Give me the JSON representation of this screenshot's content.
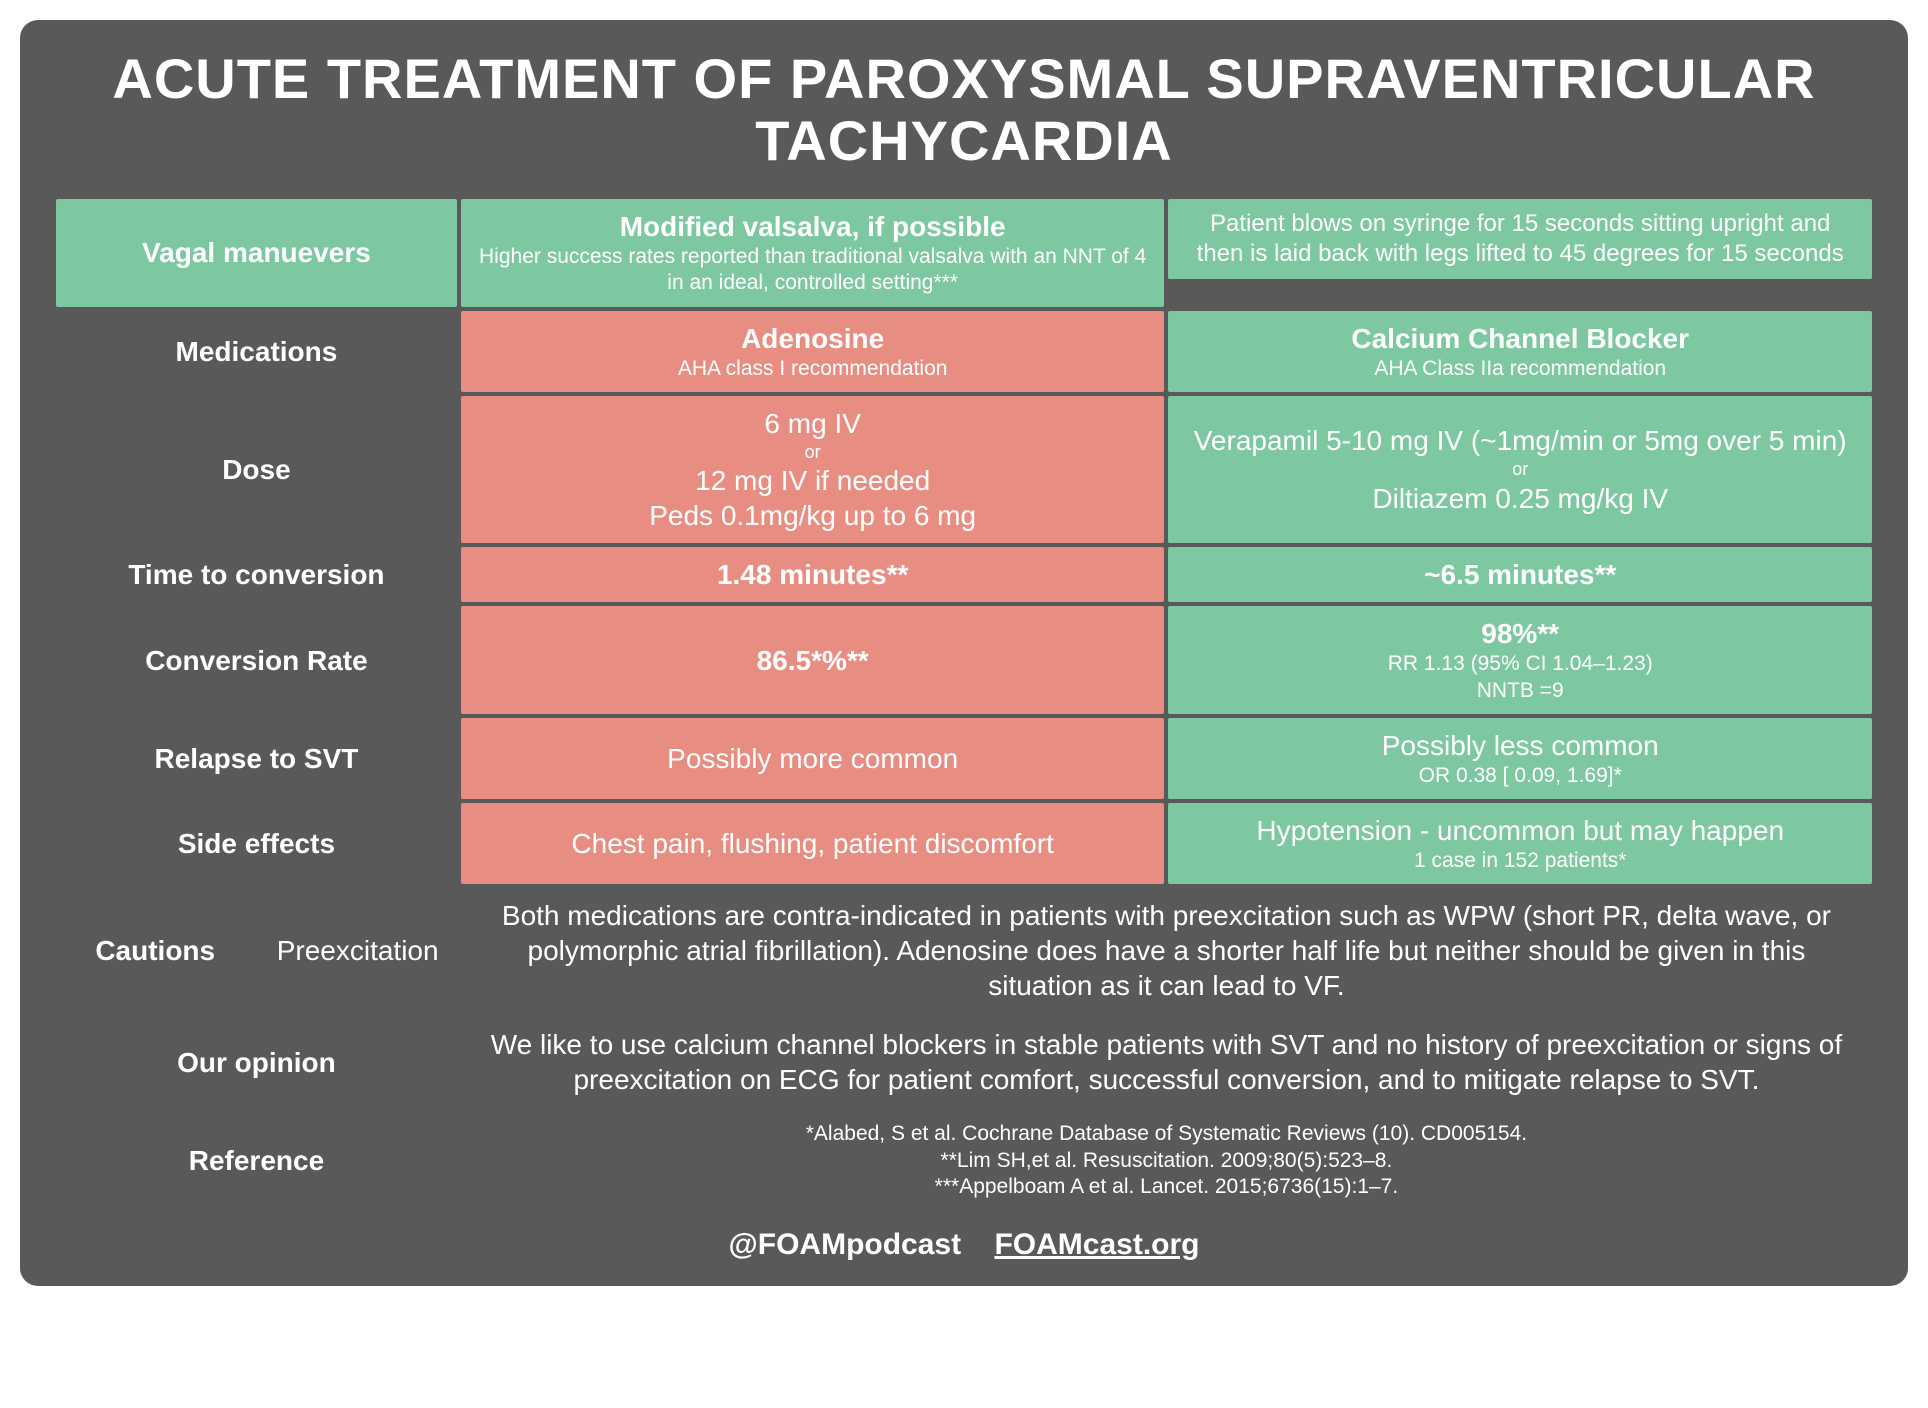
{
  "colors": {
    "card_bg": "#595959",
    "green": "#7dc8a0",
    "red": "#e88d82",
    "text": "#ffffff"
  },
  "title": "ACUTE TREATMENT OF PAROXYSMAL SUPRAVENTRICULAR TACHYCARDIA",
  "rows": {
    "vagal": {
      "label": "Vagal manuevers",
      "mid_title": "Modified valsalva, if possible",
      "mid_sub": "Higher success rates reported than traditional valsalva with an NNT of 4 in an ideal, controlled setting***",
      "right": "Patient blows on syringe for 15 seconds sitting upright and then is laid back with legs lifted to 45 degrees for 15 seconds"
    },
    "medications": {
      "label": "Medications",
      "left_title": "Adenosine",
      "left_sub": "AHA class I recommendation",
      "right_title": "Calcium Channel Blocker",
      "right_sub": "AHA Class IIa recommendation"
    },
    "dose": {
      "label": "Dose",
      "left_l1": "6 mg IV",
      "left_or": "or",
      "left_l2": "12 mg IV if needed",
      "left_l3": "Peds 0.1mg/kg up to 6 mg",
      "right_l1": "Verapamil 5-10 mg IV (~1mg/min or 5mg over 5 min)",
      "right_or": "or",
      "right_l2": "Diltiazem 0.25 mg/kg IV"
    },
    "time": {
      "label": "Time to conversion",
      "left": "1.48 minutes**",
      "right": "~6.5 minutes**"
    },
    "conv": {
      "label": "Conversion Rate",
      "left": "86.5*%**",
      "right": "98%**",
      "right_sub1": "RR 1.13 (95% CI 1.04–1.23)",
      "right_sub2": "NNTB =9"
    },
    "relapse": {
      "label": "Relapse to SVT",
      "left": "Possibly more common",
      "right": "Possibly less common",
      "right_sub": "OR 0.38 [ 0.09, 1.69]*"
    },
    "side": {
      "label": "Side effects",
      "left": "Chest pain, flushing, patient discomfort",
      "right": "Hypotension - uncommon but may happen",
      "right_sub": "1 case in 152 patients*"
    },
    "cautions": {
      "label": "Cautions",
      "sublabel": "Preexcitation",
      "text": "Both medications are contra-indicated in patients with preexcitation such as WPW (short PR, delta wave, or polymorphic atrial fibrillation). Adenosine does have a shorter half life but neither should be given in this situation as it can lead to VF."
    },
    "opinion": {
      "label": "Our opinion",
      "text": "We like to use calcium channel blockers in stable patients with SVT and no history of preexcitation or signs of preexcitation on ECG for patient comfort, successful conversion, and to mitigate relapse to SVT."
    },
    "reference": {
      "label": "Reference",
      "l1": "*Alabed, S et al. Cochrane Database of Systematic Reviews (10). CD005154.",
      "l2": "**Lim SH,et al. Resuscitation. 2009;80(5):523–8.",
      "l3": "***Appelboam A et al. Lancet. 2015;6736(15):1–7."
    }
  },
  "footer": {
    "handle": "@FOAMpodcast",
    "site": "FOAMcast.org"
  }
}
